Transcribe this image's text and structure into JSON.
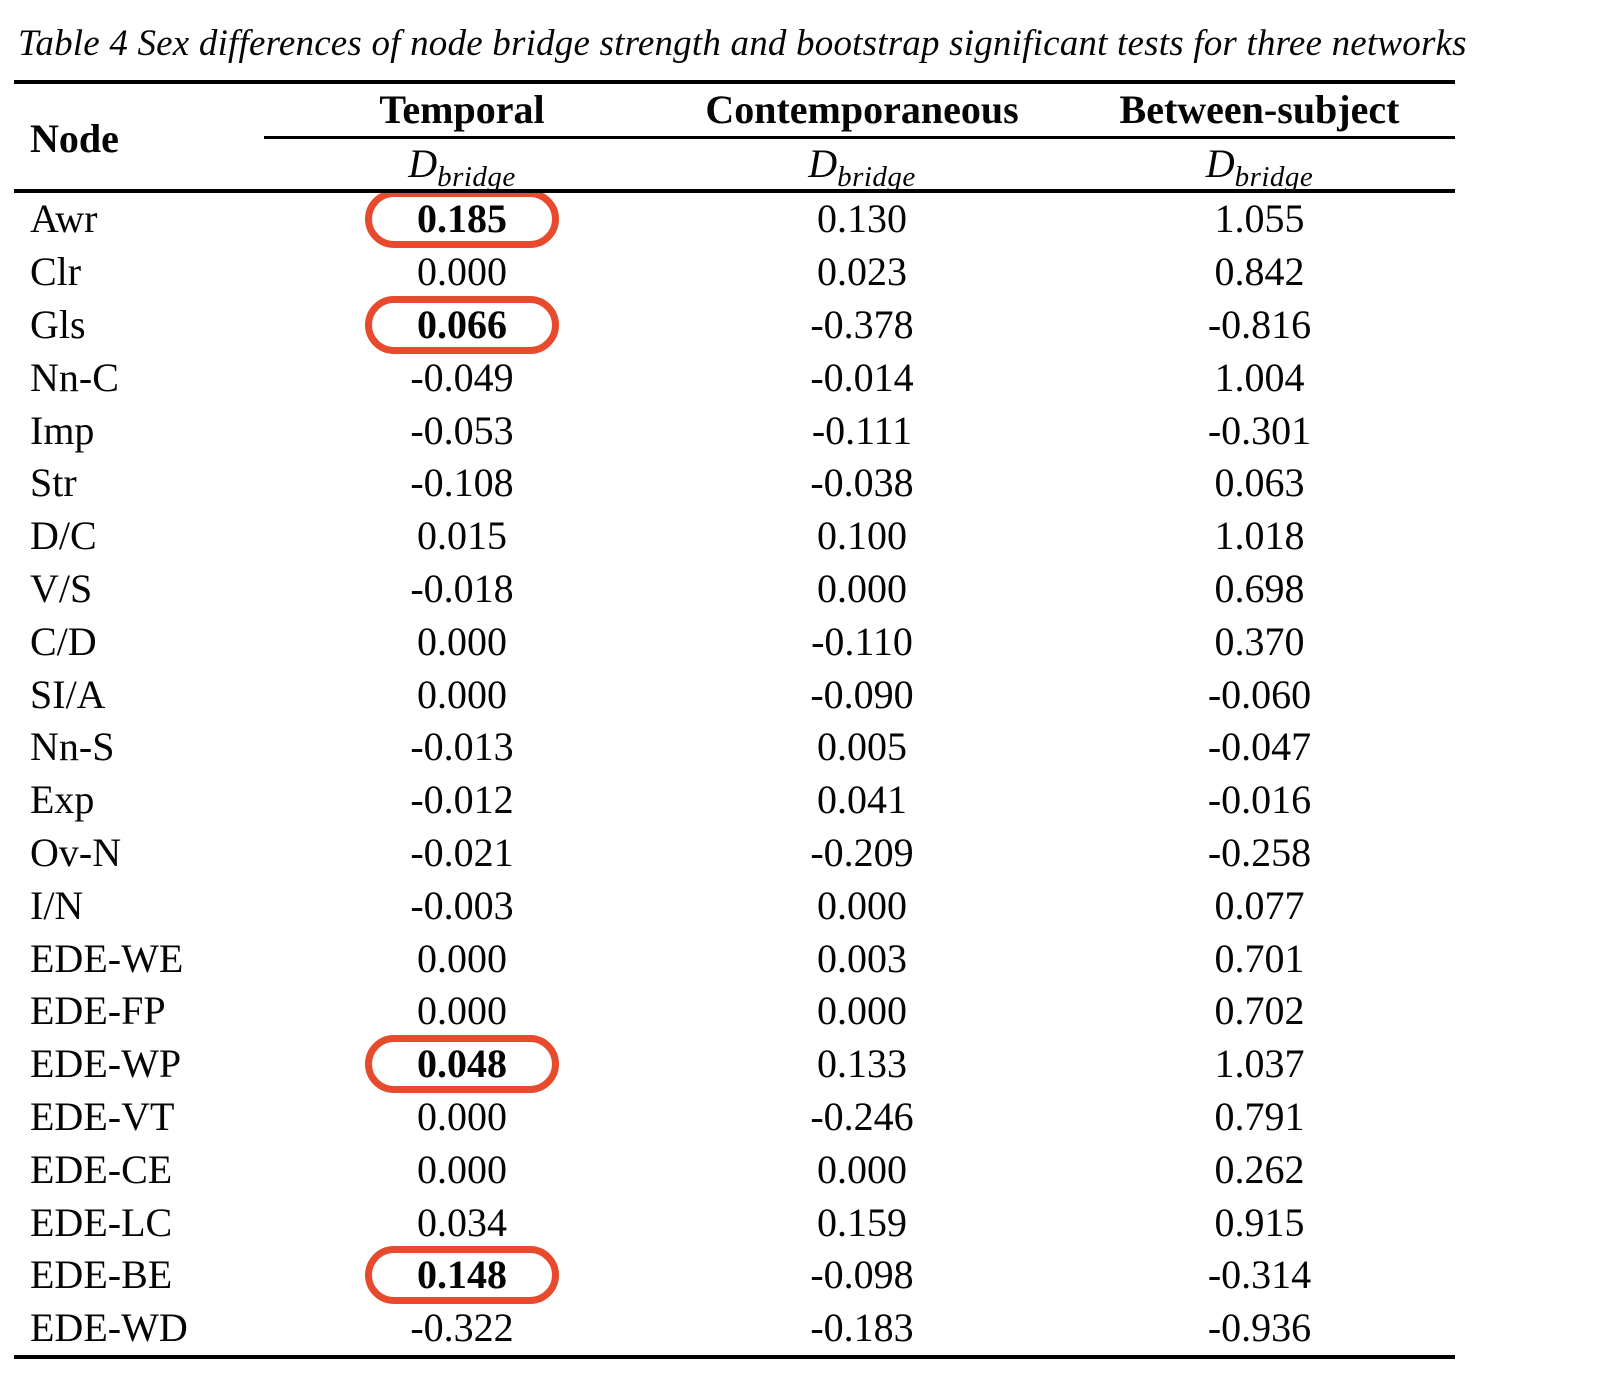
{
  "title": "Table 4 Sex differences of node bridge strength and bootstrap significant tests for three networks",
  "table": {
    "node_header": "Node",
    "groups": [
      {
        "label": "Temporal"
      },
      {
        "label": "Contemporaneous"
      },
      {
        "label": "Between-subject"
      }
    ],
    "subheader": {
      "symbol": "D",
      "subscript": "bridge"
    },
    "highlight_color": "#e84a2d",
    "rows": [
      {
        "node": "Awr",
        "temporal": "0.185",
        "contemporaneous": "0.130",
        "between": "1.055",
        "circled": true
      },
      {
        "node": "Clr",
        "temporal": "0.000",
        "contemporaneous": "0.023",
        "between": "0.842",
        "circled": false
      },
      {
        "node": "Gls",
        "temporal": "0.066",
        "contemporaneous": "-0.378",
        "between": "-0.816",
        "circled": true
      },
      {
        "node": "Nn-C",
        "temporal": "-0.049",
        "contemporaneous": "-0.014",
        "between": "1.004",
        "circled": false
      },
      {
        "node": "Imp",
        "temporal": "-0.053",
        "contemporaneous": "-0.111",
        "between": "-0.301",
        "circled": false
      },
      {
        "node": "Str",
        "temporal": "-0.108",
        "contemporaneous": "-0.038",
        "between": "0.063",
        "circled": false
      },
      {
        "node": "D/C",
        "temporal": "0.015",
        "contemporaneous": "0.100",
        "between": "1.018",
        "circled": false
      },
      {
        "node": "V/S",
        "temporal": "-0.018",
        "contemporaneous": "0.000",
        "between": "0.698",
        "circled": false
      },
      {
        "node": "C/D",
        "temporal": "0.000",
        "contemporaneous": "-0.110",
        "between": "0.370",
        "circled": false
      },
      {
        "node": "SI/A",
        "temporal": "0.000",
        "contemporaneous": "-0.090",
        "between": "-0.060",
        "circled": false
      },
      {
        "node": "Nn-S",
        "temporal": "-0.013",
        "contemporaneous": "0.005",
        "between": "-0.047",
        "circled": false
      },
      {
        "node": "Exp",
        "temporal": "-0.012",
        "contemporaneous": "0.041",
        "between": "-0.016",
        "circled": false
      },
      {
        "node": "Ov-N",
        "temporal": "-0.021",
        "contemporaneous": "-0.209",
        "between": "-0.258",
        "circled": false
      },
      {
        "node": "I/N",
        "temporal": "-0.003",
        "contemporaneous": "0.000",
        "between": "0.077",
        "circled": false
      },
      {
        "node": "EDE-WE",
        "temporal": "0.000",
        "contemporaneous": "0.003",
        "between": "0.701",
        "circled": false
      },
      {
        "node": "EDE-FP",
        "temporal": "0.000",
        "contemporaneous": "0.000",
        "between": "0.702",
        "circled": false
      },
      {
        "node": "EDE-WP",
        "temporal": "0.048",
        "contemporaneous": "0.133",
        "between": "1.037",
        "circled": true
      },
      {
        "node": "EDE-VT",
        "temporal": "0.000",
        "contemporaneous": "-0.246",
        "between": "0.791",
        "circled": false
      },
      {
        "node": "EDE-CE",
        "temporal": "0.000",
        "contemporaneous": "0.000",
        "between": "0.262",
        "circled": false
      },
      {
        "node": "EDE-LC",
        "temporal": "0.034",
        "contemporaneous": "0.159",
        "between": "0.915",
        "circled": false
      },
      {
        "node": "EDE-BE",
        "temporal": "0.148",
        "contemporaneous": "-0.098",
        "between": "-0.314",
        "circled": true
      },
      {
        "node": "EDE-WD",
        "temporal": "-0.322",
        "contemporaneous": "-0.183",
        "between": "-0.936",
        "circled": false
      }
    ]
  }
}
